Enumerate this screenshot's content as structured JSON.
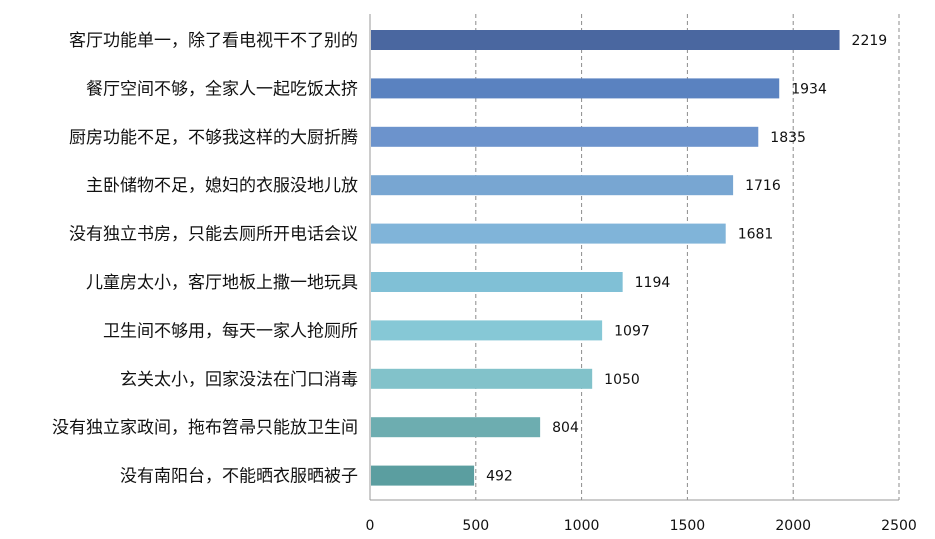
{
  "chart_data": {
    "type": "bar",
    "orientation": "horizontal",
    "title": "",
    "xlabel": "",
    "ylabel": "",
    "xlim": [
      0,
      2500
    ],
    "x_ticks": [
      0,
      500,
      1000,
      1500,
      2000,
      2500
    ],
    "grid": "vertical-dashed",
    "legend": "none",
    "categories": [
      "客厅功能单一，除了看电视干不了别的",
      "餐厅空间不够，全家人一起吃饭太挤",
      "厨房功能不足，不够我这样的大厨折腾",
      "主卧储物不足，媳妇的衣服没地儿放",
      "没有独立书房，只能去厕所开电话会议",
      "儿童房太小，客厅地板上撒一地玩具",
      "卫生间不够用，每天一家人抢厕所",
      "玄关太小，回家没法在门口消毒",
      "没有独立家政间，拖布笤帚只能放卫生间",
      "没有南阳台，不能晒衣服晒被子"
    ],
    "values": [
      2219,
      1934,
      1835,
      1716,
      1681,
      1194,
      1097,
      1050,
      804,
      492
    ],
    "bar_colors": [
      "#4a67a0",
      "#5a82c0",
      "#6c93cc",
      "#78a6d2",
      "#80b4d9",
      "#80c0d6",
      "#86c8d6",
      "#82c2ca",
      "#6dadb0",
      "#5b9ea0"
    ]
  }
}
